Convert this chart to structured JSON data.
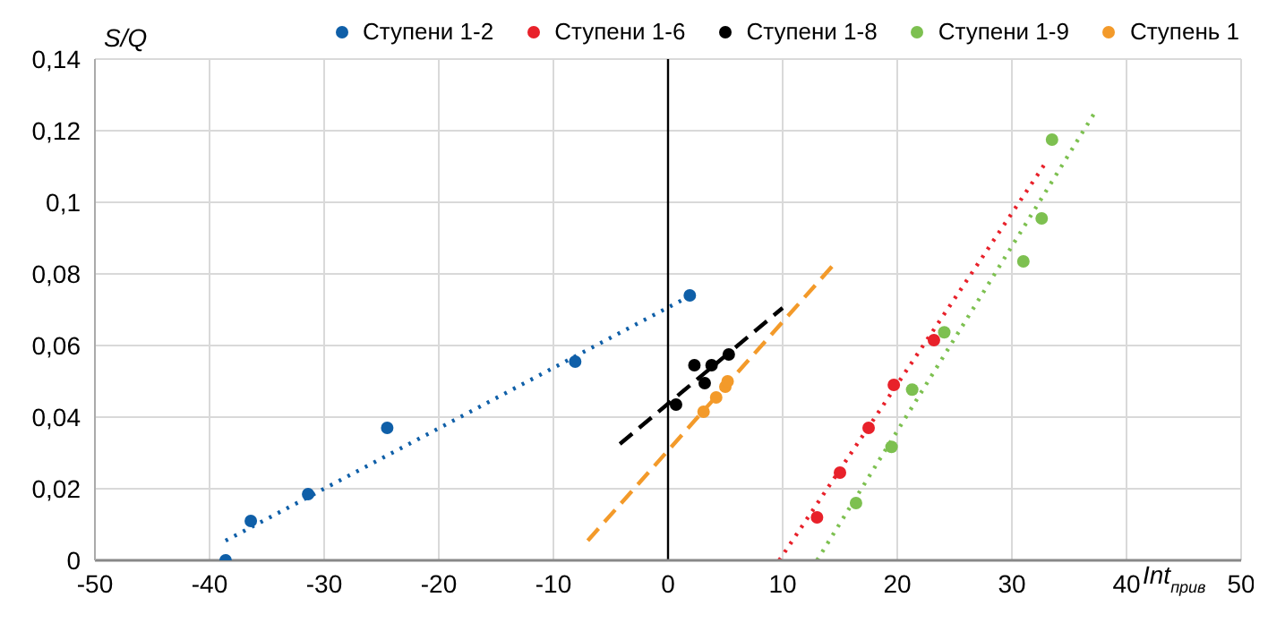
{
  "chart_data": {
    "type": "scatter",
    "xlabel": "Int$_{прив}$",
    "ylabel": "S/Q",
    "xlim": [
      -50,
      50
    ],
    "xticks": [
      -50,
      -40,
      -30,
      -20,
      -10,
      0,
      10,
      20,
      30,
      40,
      50
    ],
    "ylim": [
      0,
      0.14
    ],
    "yticks": [
      {
        "value": 0,
        "label": "0"
      },
      {
        "value": 0.02,
        "label": "0,02"
      },
      {
        "value": 0.04,
        "label": "0,04"
      },
      {
        "value": 0.06,
        "label": "0,06"
      },
      {
        "value": 0.08,
        "label": "0,08"
      },
      {
        "value": 0.1,
        "label": "0,1"
      },
      {
        "value": 0.12,
        "label": "0,12"
      },
      {
        "value": 0.14,
        "label": "0,14"
      }
    ],
    "grid": true,
    "legend": "top right",
    "marker": "circle",
    "series": [
      {
        "name": "Ступени 1-2",
        "color": "#0f5fa8",
        "x": [
          -38.6,
          -36.4,
          -31.4,
          -24.5,
          -8.1,
          1.9
        ],
        "values": [
          0,
          0.011,
          0.0185,
          0.037,
          0.0555,
          0.074
        ]
      },
      {
        "name": "Ступени 1-6",
        "color": "#e8212a",
        "x": [
          13,
          15,
          17.5,
          19.7,
          23.2
        ],
        "values": [
          0.012,
          0.0245,
          0.037,
          0.049,
          0.0615
        ]
      },
      {
        "name": "Ступени 1-8",
        "color": "#000000",
        "x": [
          0.7,
          2.3,
          3.2,
          3.8,
          5.3
        ],
        "values": [
          0.0435,
          0.0545,
          0.0495,
          0.0545,
          0.0575
        ]
      },
      {
        "name": "Ступени 1-9",
        "color": "#7dc050",
        "x": [
          16.4,
          19.5,
          21.3,
          24.1,
          31,
          32.6,
          33.5
        ],
        "values": [
          0.016,
          0.0317,
          0.0477,
          0.0637,
          0.0835,
          0.0955,
          0.1175
        ]
      },
      {
        "name": "Ступень 1",
        "color": "#f39a2a",
        "x": [
          3.1,
          4.2,
          5,
          5.2
        ],
        "values": [
          0.0415,
          0.0455,
          0.0485,
          0.05
        ]
      },
      {
        "type": "line",
        "color": "#0f5fa8",
        "marker": "none",
        "line_style": "dotted",
        "x": [
          -38.6,
          2
        ],
        "values": [
          0.0055,
          0.074
        ]
      },
      {
        "type": "line",
        "color": "#e8212a",
        "marker": "none",
        "line_style": "dotted",
        "x": [
          9.7,
          33
        ],
        "values": [
          0,
          0.1113
        ]
      },
      {
        "type": "line",
        "color": "#000000",
        "marker": "none",
        "line_style": "dashed",
        "x": [
          -4.2,
          10
        ],
        "values": [
          0.0325,
          0.0705
        ]
      },
      {
        "type": "line",
        "color": "#7dc050",
        "marker": "none",
        "line_style": "dotted",
        "x": [
          13,
          37.2
        ],
        "values": [
          0,
          0.1249
        ]
      },
      {
        "type": "line",
        "color": "#f39a2a",
        "marker": "none",
        "line_style": "dashed",
        "x": [
          -7,
          14.7
        ],
        "values": [
          0.0055,
          0.0835
        ]
      }
    ]
  }
}
